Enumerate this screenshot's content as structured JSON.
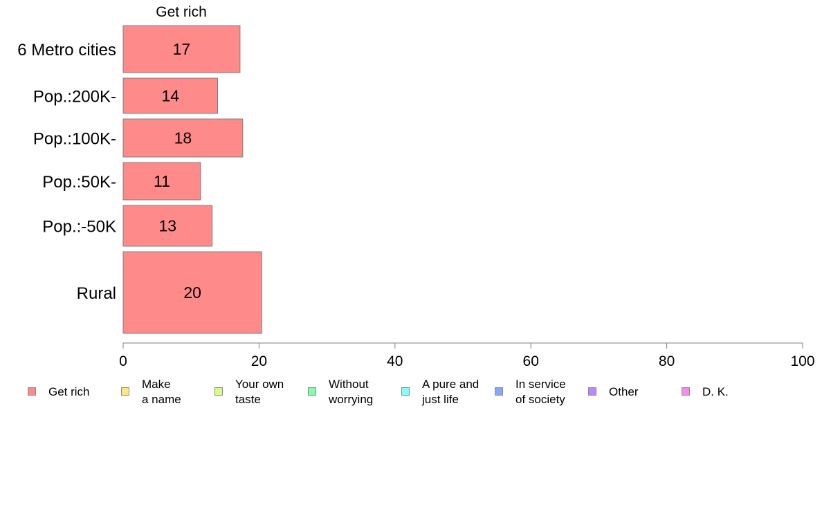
{
  "chart_data": {
    "type": "bar",
    "orientation": "horizontal",
    "title": "Get rich",
    "categories": [
      "6 Metro cities",
      "Pop.:200K-",
      "Pop.:100K-",
      "Pop.:50K-",
      "Pop.:-50K",
      "Rural"
    ],
    "series": [
      {
        "name": "Get rich",
        "values": [
          17.2,
          13.9,
          17.6,
          11.4,
          13.1,
          20.4
        ],
        "labels": [
          "17",
          "14",
          "18",
          "11",
          "13",
          "20"
        ]
      }
    ],
    "xlim": [
      0,
      100
    ],
    "xticks": [
      "0",
      "20",
      "40",
      "60",
      "80",
      "100"
    ],
    "xlabel": "",
    "ylabel": "",
    "grid": false,
    "bar_color": "#ff8a8a",
    "legend": {
      "placement": "bottom",
      "entries": [
        {
          "label": "Get rich",
          "color": "#ff8a8a"
        },
        {
          "label": "Make\na name",
          "color": "#ffe680"
        },
        {
          "label": "Your own\ntaste",
          "color": "#d4ff80"
        },
        {
          "label": "Without\nworrying",
          "color": "#80ffaa"
        },
        {
          "label": "A pure and\njust life",
          "color": "#80ffff"
        },
        {
          "label": "In service\nof society",
          "color": "#80aaff"
        },
        {
          "label": "Other",
          "color": "#bb88ff"
        },
        {
          "label": "D. K.",
          "color": "#ff88ee"
        }
      ]
    }
  }
}
